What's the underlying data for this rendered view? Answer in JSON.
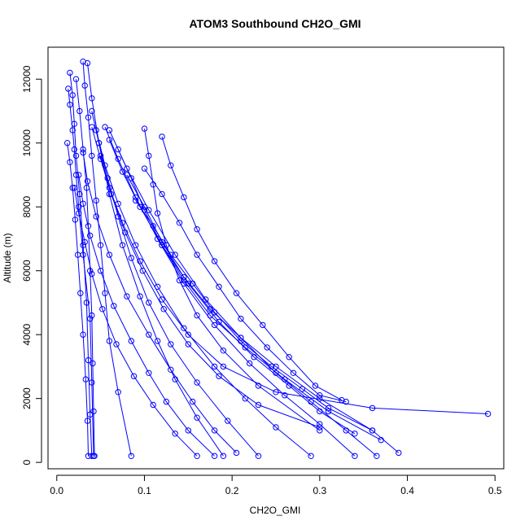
{
  "chart_data": {
    "type": "scatter",
    "title": "ATOM3 Southbound CH2O_GMI",
    "xlabel": "CH2O_GMI",
    "ylabel": "Altitude (m)",
    "xlim": [
      -0.01,
      0.51
    ],
    "ylim": [
      -200,
      13000
    ],
    "x_ticks": [
      0.0,
      0.1,
      0.2,
      0.3,
      0.4,
      0.5
    ],
    "x_tick_labels": [
      "0.0",
      "0.1",
      "0.2",
      "0.3",
      "0.4",
      "0.5"
    ],
    "y_ticks": [
      0,
      2000,
      4000,
      6000,
      8000,
      10000,
      12000
    ],
    "y_tick_labels": [
      "0",
      "2000",
      "4000",
      "6000",
      "8000",
      "10000",
      "12000"
    ],
    "grid": false,
    "legend": "none",
    "marker": "open-circle",
    "color": "#0000ff",
    "series": [
      {
        "x": [
          0.013,
          0.015,
          0.018,
          0.02,
          0.022,
          0.025,
          0.03,
          0.038,
          0.04,
          0.042
        ],
        "y": [
          11700,
          11200,
          10400,
          9800,
          9000,
          8000,
          6500,
          4500,
          2500,
          200
        ]
      },
      {
        "x": [
          0.015,
          0.018,
          0.02,
          0.022,
          0.026,
          0.03,
          0.034,
          0.036,
          0.038,
          0.04
        ],
        "y": [
          12200,
          11500,
          10600,
          9600,
          8400,
          6800,
          5000,
          3200,
          1500,
          200
        ]
      },
      {
        "x": [
          0.012,
          0.015,
          0.018,
          0.021,
          0.024,
          0.027,
          0.03,
          0.033,
          0.035,
          0.036
        ],
        "y": [
          10000,
          9400,
          8600,
          7600,
          6500,
          5300,
          4000,
          2600,
          1300,
          200
        ]
      },
      {
        "x": [
          0.022,
          0.026,
          0.03,
          0.034,
          0.036,
          0.038,
          0.04,
          0.041,
          0.042,
          0.043
        ],
        "y": [
          12000,
          11000,
          9800,
          8600,
          7400,
          6000,
          4600,
          3100,
          1600,
          200
        ]
      },
      {
        "x": [
          0.03,
          0.032,
          0.036,
          0.04,
          0.045,
          0.05,
          0.055,
          0.06,
          0.07,
          0.085
        ],
        "y": [
          12550,
          11800,
          10800,
          9600,
          8200,
          6800,
          5300,
          3800,
          2200,
          200
        ]
      },
      {
        "x": [
          0.035,
          0.04,
          0.048,
          0.06,
          0.075,
          0.095,
          0.115,
          0.135,
          0.16,
          0.19
        ],
        "y": [
          12500,
          11400,
          10000,
          8400,
          6800,
          5200,
          3800,
          2600,
          1400,
          200
        ]
      },
      {
        "x": [
          0.04,
          0.048,
          0.058,
          0.07,
          0.085,
          0.105,
          0.13,
          0.16,
          0.195,
          0.23
        ],
        "y": [
          11000,
          10000,
          8900,
          7700,
          6400,
          5000,
          3700,
          2500,
          1300,
          200
        ]
      },
      {
        "x": [
          0.045,
          0.055,
          0.07,
          0.09,
          0.115,
          0.145,
          0.18,
          0.215,
          0.25,
          0.29
        ],
        "y": [
          10400,
          9300,
          8100,
          6800,
          5500,
          4200,
          3000,
          2000,
          1100,
          200
        ]
      },
      {
        "x": [
          0.055,
          0.07,
          0.09,
          0.115,
          0.145,
          0.18,
          0.22,
          0.26,
          0.3,
          0.34
        ],
        "y": [
          10500,
          9500,
          8300,
          7000,
          5600,
          4300,
          3100,
          2100,
          1200,
          200
        ]
      },
      {
        "x": [
          0.06,
          0.08,
          0.105,
          0.135,
          0.17,
          0.21,
          0.25,
          0.29,
          0.33,
          0.365
        ],
        "y": [
          10400,
          9200,
          7900,
          6500,
          5100,
          3900,
          2800,
          1900,
          1000,
          200
        ]
      },
      {
        "x": [
          0.1,
          0.105,
          0.11,
          0.115,
          0.125,
          0.14,
          0.16,
          0.19,
          0.23,
          0.3
        ],
        "y": [
          10450,
          9600,
          8700,
          7800,
          6800,
          5700,
          4600,
          3500,
          2400,
          1000
        ]
      },
      {
        "x": [
          0.1,
          0.12,
          0.14,
          0.16,
          0.185,
          0.21,
          0.24,
          0.27,
          0.3,
          0.33
        ],
        "y": [
          9200,
          8400,
          7500,
          6500,
          5500,
          4500,
          3600,
          2800,
          2100,
          1900
        ]
      },
      {
        "x": [
          0.08,
          0.1,
          0.12,
          0.145,
          0.175,
          0.21,
          0.25,
          0.3,
          0.36,
          0.39
        ],
        "y": [
          9000,
          8000,
          6900,
          5800,
          4800,
          3900,
          3000,
          2000,
          1000,
          300
        ]
      },
      {
        "x": [
          0.05,
          0.06,
          0.075,
          0.095,
          0.12,
          0.15,
          0.19,
          0.25,
          0.36,
          0.492
        ],
        "y": [
          9600,
          8600,
          7500,
          6300,
          5100,
          4000,
          3000,
          2200,
          1700,
          1520
        ]
      },
      {
        "x": [
          0.07,
          0.085,
          0.1,
          0.12,
          0.145,
          0.175,
          0.215,
          0.26,
          0.31,
          0.37
        ],
        "y": [
          9800,
          8900,
          7900,
          6800,
          5700,
          4600,
          3600,
          2600,
          1600,
          700
        ]
      },
      {
        "x": [
          0.03,
          0.035,
          0.045,
          0.06,
          0.08,
          0.105,
          0.13,
          0.155,
          0.18,
          0.205
        ],
        "y": [
          9700,
          8800,
          7700,
          6500,
          5200,
          4000,
          2900,
          1900,
          1000,
          300
        ]
      },
      {
        "x": [
          0.025,
          0.03,
          0.038,
          0.05,
          0.065,
          0.085,
          0.105,
          0.125,
          0.15,
          0.18
        ],
        "y": [
          9000,
          8100,
          7100,
          6000,
          4900,
          3800,
          2800,
          1900,
          1000,
          200
        ]
      },
      {
        "x": [
          0.02,
          0.025,
          0.032,
          0.04,
          0.052,
          0.068,
          0.088,
          0.11,
          0.135,
          0.16
        ],
        "y": [
          8600,
          7800,
          6900,
          5900,
          4800,
          3700,
          2700,
          1800,
          900,
          200
        ]
      },
      {
        "x": [
          0.06,
          0.075,
          0.095,
          0.12,
          0.15,
          0.185,
          0.225,
          0.265,
          0.3,
          0.34
        ],
        "y": [
          10100,
          9100,
          8000,
          6800,
          5600,
          4400,
          3300,
          2400,
          1600,
          900
        ]
      },
      {
        "x": [
          0.09,
          0.11,
          0.13,
          0.155,
          0.18,
          0.21,
          0.245,
          0.28,
          0.31,
          0.36
        ],
        "y": [
          8200,
          7400,
          6500,
          5600,
          4700,
          3800,
          3000,
          2300,
          1700,
          1000
        ]
      },
      {
        "x": [
          0.12,
          0.13,
          0.145,
          0.16,
          0.18,
          0.205,
          0.235,
          0.265,
          0.295,
          0.325
        ],
        "y": [
          10200,
          9300,
          8300,
          7300,
          6300,
          5300,
          4300,
          3300,
          2400,
          1950
        ]
      },
      {
        "x": [
          0.04,
          0.05,
          0.062,
          0.078,
          0.098,
          0.122,
          0.15,
          0.185,
          0.23,
          0.3
        ],
        "y": [
          10500,
          9500,
          8400,
          7200,
          6000,
          4800,
          3700,
          2700,
          1800,
          1100
        ]
      }
    ]
  }
}
